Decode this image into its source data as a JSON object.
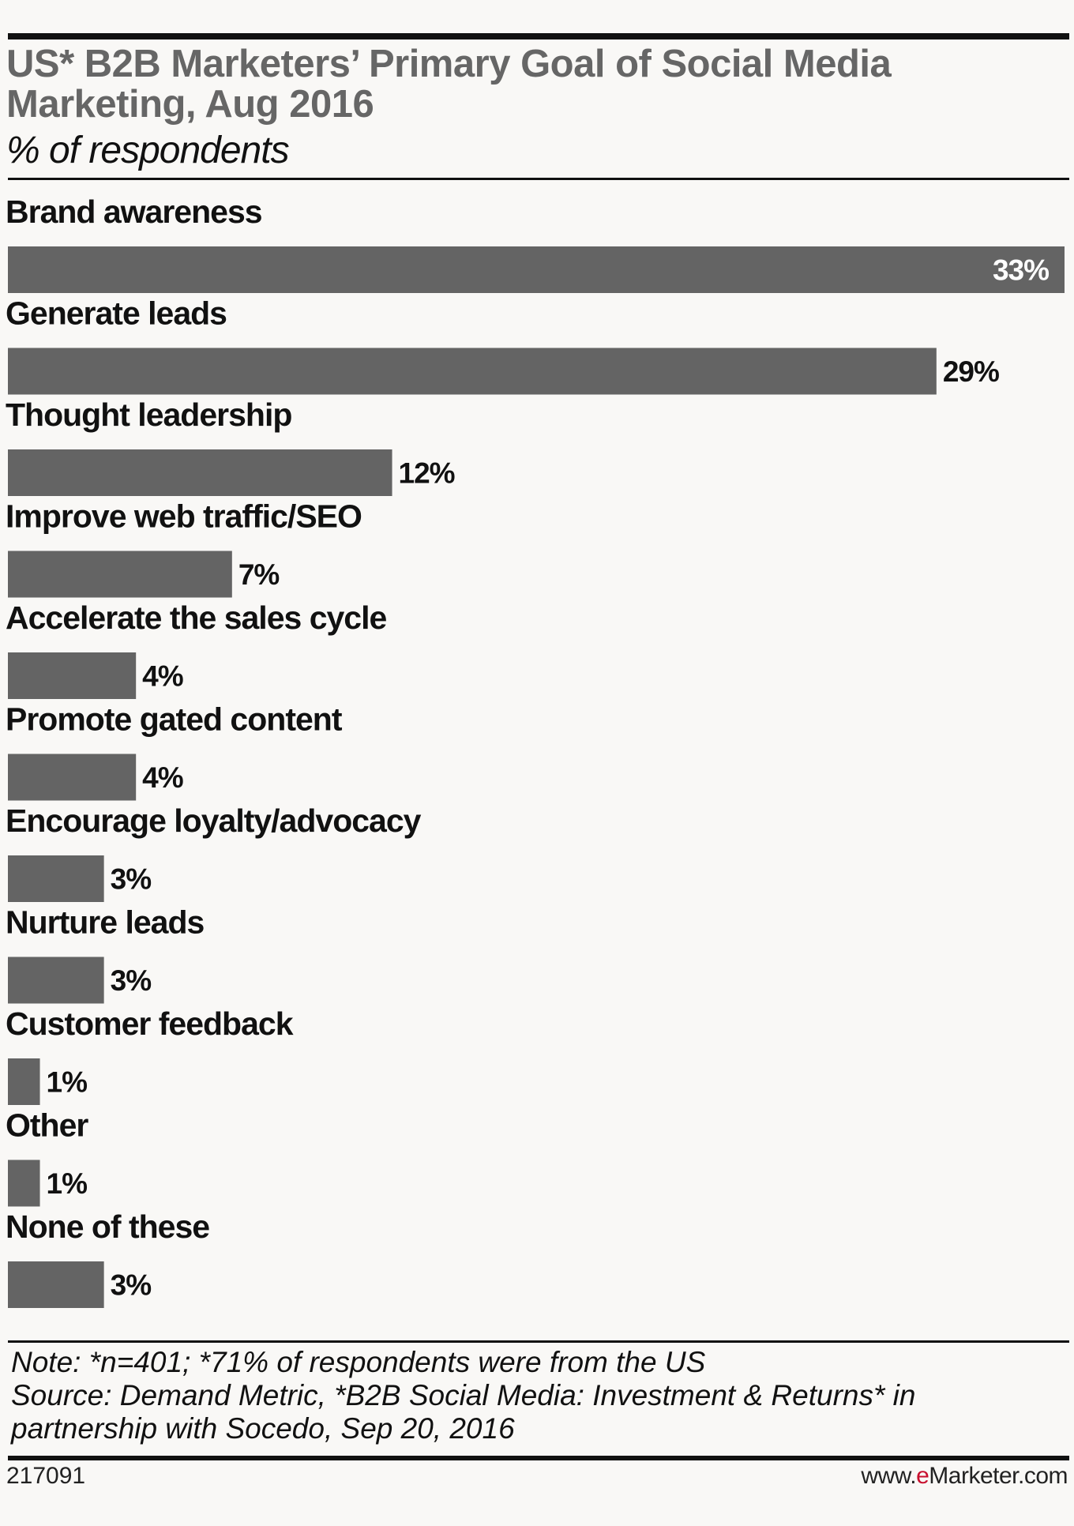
{
  "title": "US* B2B Marketers’ Primary Goal of Social Media Marketing, Aug 2016",
  "subtitle": "% of respondents",
  "chart_data": {
    "type": "bar",
    "orientation": "horizontal",
    "categories": [
      "Brand awareness",
      "Generate leads",
      "Thought leadership",
      "Improve web traffic/SEO",
      "Accelerate the sales cycle",
      "Promote gated content",
      "Encourage loyalty/advocacy",
      "Nurture leads",
      "Customer feedback",
      "Other",
      "None of these"
    ],
    "values": [
      33,
      29,
      12,
      7,
      4,
      4,
      3,
      3,
      1,
      1,
      3
    ],
    "value_labels": [
      "33%",
      "29%",
      "12%",
      "7%",
      "4%",
      "4%",
      "3%",
      "3%",
      "1%",
      "1%",
      "3%"
    ],
    "xlim": [
      0,
      33
    ],
    "grid": false,
    "bar_color": "#646464"
  },
  "note": {
    "line1": "Note: *n=401; *71% of respondents were from the US",
    "line2": "Source: Demand Metric, *B2B Social Media:  Investment & Returns* in",
    "line3": "partnership with Socedo, Sep 20, 2016"
  },
  "footer": {
    "chart_id": "217091",
    "brand_prefix": "www.",
    "brand_e": "e",
    "brand_suffix": "Marketer.com"
  }
}
